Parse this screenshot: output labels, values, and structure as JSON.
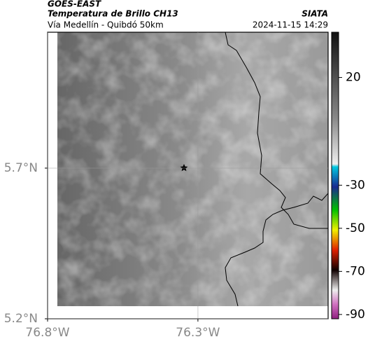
{
  "header": {
    "source": "GOES-EAST",
    "title": "Temperatura de Brillo CH13",
    "subtitle": "Vía Medellín - Quibdó 50km",
    "agency": "SIATA",
    "datetime": "2024-11-15 14:29"
  },
  "map": {
    "lat_range": [
      5.2,
      6.151
    ],
    "lon_range": [
      -76.8,
      -75.867
    ],
    "lat_ticks": [
      {
        "value": 5.7,
        "label": "5.7°N"
      },
      {
        "value": 5.2,
        "label": "5.2°N"
      }
    ],
    "lon_ticks": [
      {
        "value": -76.8,
        "label": "76.8°W"
      },
      {
        "value": -76.3,
        "label": "76.3°W"
      }
    ]
  },
  "colorbar": {
    "range": [
      -92,
      41
    ],
    "ticks": [
      20,
      -30,
      -50,
      -70,
      -90
    ]
  }
}
